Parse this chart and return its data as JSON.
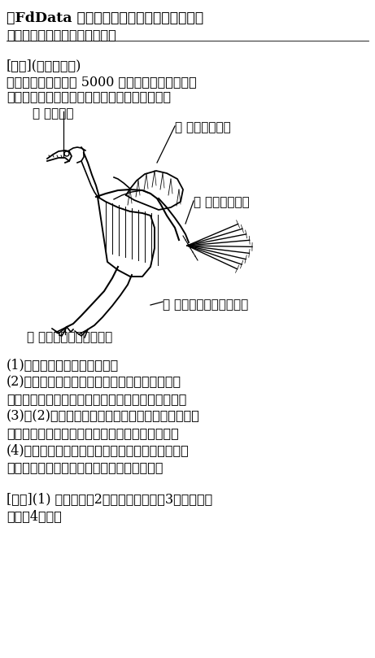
{
  "title_line1": "【FdData 中間期末：中学理科２年：進化】",
  "title_line2": "［進化の証拠①：始祖鳥など］",
  "section_label": "[問題](１学期期末)",
  "intro1": "　次の図は，約１億 5000 万年前の地層から発見",
  "intro2": "された化石の復元図である。各問いに答えよ。",
  "label_u": "ウ 歯がある",
  "label_i": "イ つばさがある",
  "label_a": "ア 尾に骨がある",
  "label_e": "エ 羽毛におおわれている",
  "label_o": "オ つめのついた指がある",
  "q1": "(1)　この動物を何というか。",
  "q2a": "(2)　この動物は鳥に似ているが現在の鳥にない",
  "q2b": "　　特徴がある。その特徴を図のア〜オから選べ。",
  "q3a": "(3)　(2)の特徴をもつことから，現在の鳥類は何類",
  "q3b": "　　のなかまから分かれてきたと考えられるか。",
  "q4a": "(4)　生物が長い時間をかけて変化し，いろいろな",
  "q4b": "　　種類に分かれていくことを何というか。",
  "ans_head": "[解答](1) 始祖鳥　（2）ア，ウ，オ　（3）ハチュウ",
  "ans2": "類　（4）進化",
  "bg": "#ffffff",
  "fg": "#000000"
}
